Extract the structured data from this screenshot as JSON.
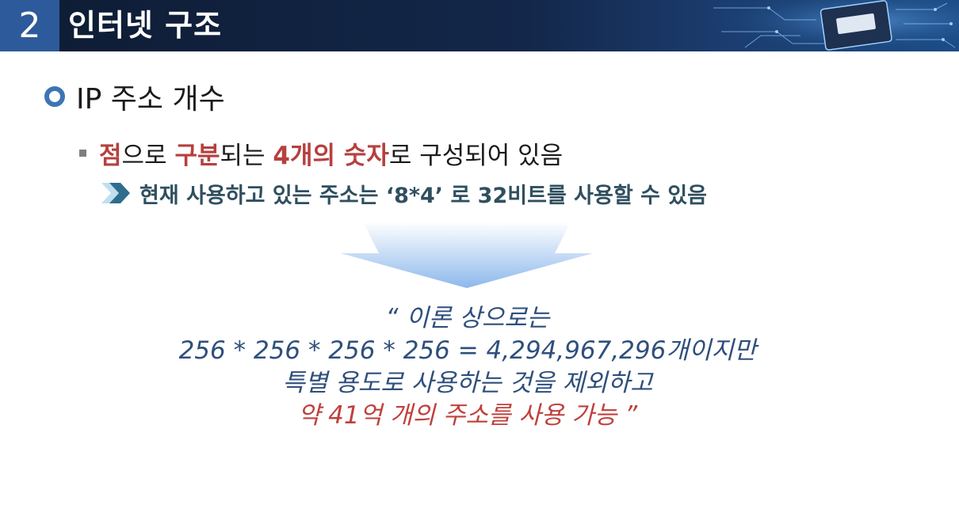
{
  "header": {
    "number": "2",
    "title": "인터넷 구조",
    "colors": {
      "bar": "#13274a",
      "number_box": "#2d5a9a"
    }
  },
  "bullet1": {
    "text": "IP 주소 개수",
    "icon": "ring-bullet-icon"
  },
  "bullet2": {
    "icon": "square-bullet-icon",
    "segments": [
      {
        "text": "점",
        "highlight": true
      },
      {
        "text": "으로 ",
        "highlight": false
      },
      {
        "text": "구분",
        "highlight": true
      },
      {
        "text": "되는 ",
        "highlight": false
      },
      {
        "text": "4개의 숫자",
        "highlight": true
      },
      {
        "text": "로 구성되어 있음",
        "highlight": false
      }
    ]
  },
  "bullet3": {
    "icon": "chevron-right-icon",
    "text": "현재 사용하고 있는 주소는 ‘8*4’ 로 32비트를 사용할 수 있음"
  },
  "quote": {
    "line1": "“ 이론 상으로는",
    "line2": "256 * 256 * 256 * 256 = 4,294,967,296개이지만",
    "line3": "특별 용도로 사용하는 것을 제외하고",
    "line4": "약 41억 개의 주소를 사용 가능 ”"
  },
  "colors": {
    "highlight": "#b5403f",
    "quote_blue": "#2f4f7c",
    "quote_red": "#c0403c",
    "sub_text": "#2f4f5f"
  }
}
